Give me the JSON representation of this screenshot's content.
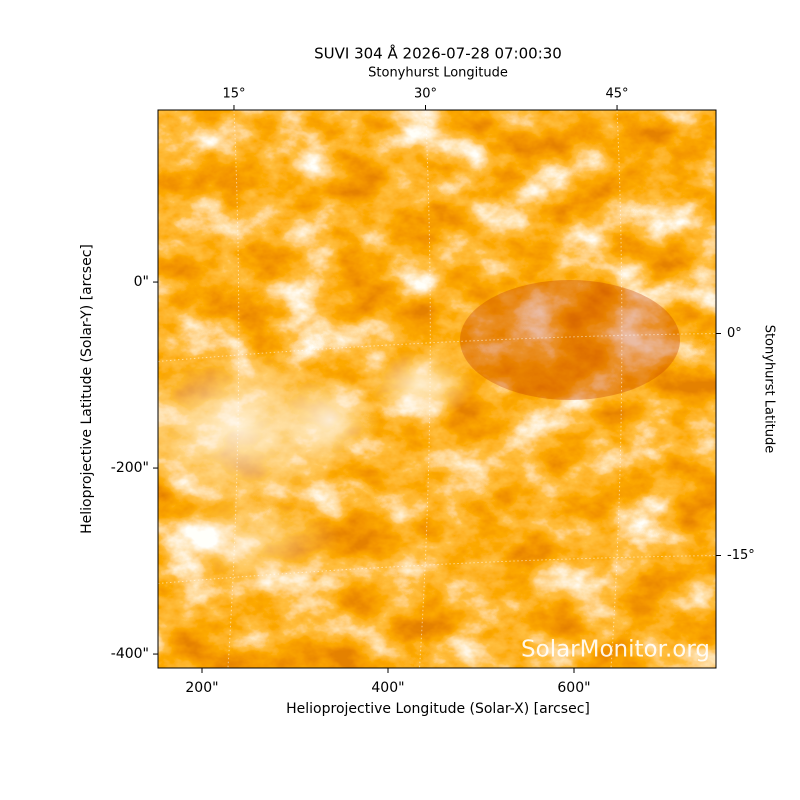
{
  "chart_data": {
    "type": "image",
    "title": "SUVI 304 Å 2026-07-28 07:00:30",
    "xlabel": "Helioprojective Longitude (Solar-X) [arcsec]",
    "ylabel": "Helioprojective Latitude (Solar-Y) [arcsec]",
    "x2label": "Stonyhurst Longitude",
    "y2label": "Stonyhurst Latitude",
    "watermark": "SolarMonitor.org",
    "xlim": [
      152.7,
      752.7
    ],
    "ylim": [
      -415,
      185
    ],
    "xticks": [
      {
        "value": 200,
        "label": "200\""
      },
      {
        "value": 400,
        "label": "400\""
      },
      {
        "value": 600,
        "label": "600\""
      }
    ],
    "yticks": [
      {
        "value": -400,
        "label": "-400\""
      },
      {
        "value": -200,
        "label": "-200\""
      },
      {
        "value": 0,
        "label": "0\""
      }
    ],
    "x2lim": [
      9.05,
      52.75
    ],
    "x2ticks": [
      {
        "value": 15,
        "label": "15°"
      },
      {
        "value": 30,
        "label": "30°"
      },
      {
        "value": 45,
        "label": "45°"
      }
    ],
    "y2lim": [
      -22.6,
      15.1
    ],
    "y2ticks": [
      {
        "value": -15,
        "label": "-15°"
      },
      {
        "value": 0,
        "label": "0°"
      }
    ],
    "grid": true
  }
}
